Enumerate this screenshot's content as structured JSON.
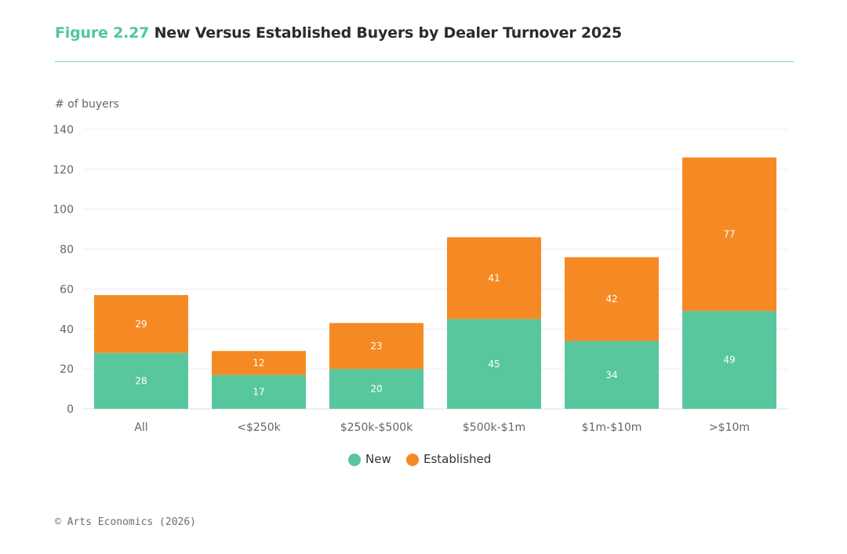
{
  "title": {
    "figure_number": "Figure 2.27",
    "text": "New Versus Established Buyers by Dealer Turnover 2025"
  },
  "footer": "© Arts Economics (2026)",
  "colors": {
    "new": "#58c79e",
    "established": "#f58a24",
    "accent": "#4fc79d",
    "gridline": "#ececec",
    "axis_text": "#666666"
  },
  "chart_data": {
    "type": "bar",
    "stacked": true,
    "ylabel": "# of buyers",
    "xlabel": "",
    "ylim": [
      0,
      140
    ],
    "yticks": [
      0,
      20,
      40,
      60,
      80,
      100,
      120,
      140
    ],
    "grid": true,
    "legend_position": "bottom-center",
    "categories": [
      "All",
      "<$250k",
      "$250k-$500k",
      "$500k-$1m",
      "$1m-$10m",
      ">$10m"
    ],
    "series": [
      {
        "name": "New",
        "values": [
          28,
          17,
          20,
          45,
          34,
          49
        ]
      },
      {
        "name": "Established",
        "values": [
          29,
          12,
          23,
          41,
          42,
          77
        ]
      }
    ]
  }
}
